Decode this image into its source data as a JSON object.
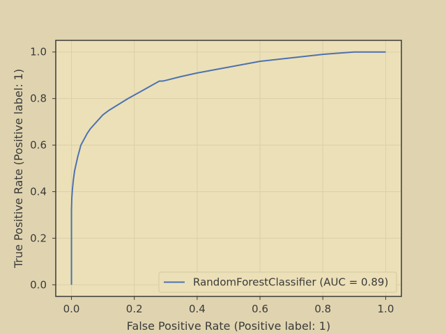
{
  "colors": {
    "figure_bg": "#e0d4b0",
    "axes_bg": "#ece0b8",
    "spine": "#3a3a3a",
    "grid": "#dccfa8",
    "line": "#4c72b0",
    "text": "#3a3a3a",
    "legend_bg": "#ece0b8",
    "legend_edge": "#d4c8a0"
  },
  "chart_data": {
    "type": "line",
    "title": "",
    "xlabel": "False Positive Rate (Positive label: 1)",
    "ylabel": "True Positive Rate (Positive label: 1)",
    "xlim": [
      -0.05,
      1.05
    ],
    "ylim": [
      -0.05,
      1.05
    ],
    "xticks": [
      0.0,
      0.2,
      0.4,
      0.6,
      0.8,
      1.0
    ],
    "yticks": [
      0.0,
      0.2,
      0.4,
      0.6,
      0.8,
      1.0
    ],
    "xtick_labels": [
      "0.0",
      "0.2",
      "0.4",
      "0.6",
      "0.8",
      "1.0"
    ],
    "ytick_labels": [
      "0.0",
      "0.2",
      "0.4",
      "0.6",
      "0.8",
      "1.0"
    ],
    "grid": true,
    "legend_position": "lower-right",
    "series": [
      {
        "name": "RandomForestClassifier (AUC = 0.89)",
        "x": [
          0.0,
          0.0,
          0.001,
          0.003,
          0.006,
          0.01,
          0.015,
          0.02,
          0.025,
          0.03,
          0.04,
          0.05,
          0.06,
          0.08,
          0.1,
          0.12,
          0.15,
          0.18,
          0.22,
          0.26,
          0.28,
          0.29,
          0.3,
          0.35,
          0.4,
          0.5,
          0.6,
          0.7,
          0.8,
          0.85,
          0.9,
          0.95,
          1.0
        ],
        "y": [
          0.0,
          0.32,
          0.37,
          0.41,
          0.45,
          0.49,
          0.52,
          0.55,
          0.575,
          0.6,
          0.625,
          0.65,
          0.67,
          0.7,
          0.73,
          0.75,
          0.775,
          0.8,
          0.83,
          0.86,
          0.875,
          0.875,
          0.878,
          0.895,
          0.91,
          0.935,
          0.96,
          0.975,
          0.99,
          0.995,
          1.0,
          1.0,
          1.0
        ]
      }
    ]
  }
}
